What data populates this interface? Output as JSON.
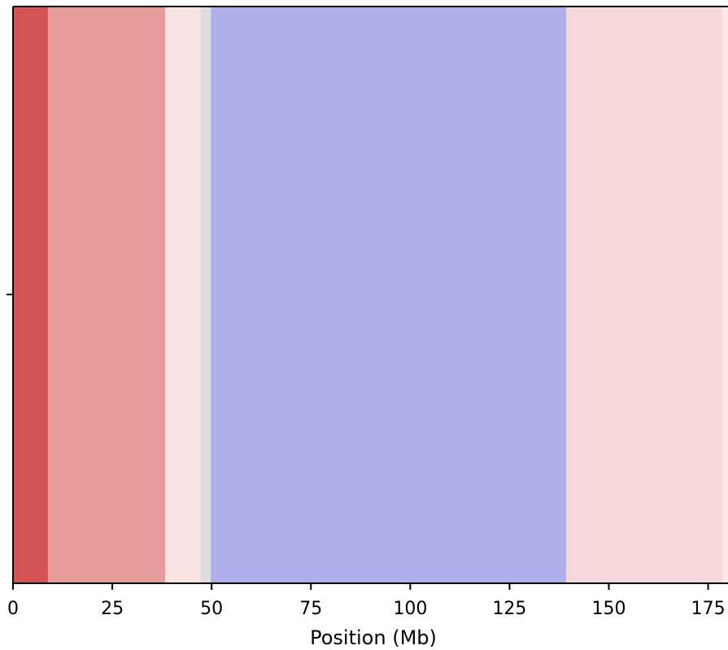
{
  "chart_data": {
    "type": "heatmap",
    "title": "",
    "xlabel": "Position (Mb)",
    "ylabel": "",
    "xlim": [
      0,
      180
    ],
    "x_ticks": [
      0,
      25,
      50,
      75,
      100,
      125,
      150,
      175
    ],
    "x_tick_labels": [
      "0",
      "25",
      "50",
      "75",
      "100",
      "125",
      "150",
      "175"
    ],
    "grid": false,
    "legend": "none",
    "segments": [
      {
        "start": 0,
        "end": 8.8,
        "color": "#d45354"
      },
      {
        "start": 8.8,
        "end": 38.3,
        "color": "#e89b9b"
      },
      {
        "start": 38.3,
        "end": 47.3,
        "color": "#f8e3e1"
      },
      {
        "start": 47.3,
        "end": 49.8,
        "color": "#dddddd"
      },
      {
        "start": 49.8,
        "end": 139.3,
        "color": "#afb0eb"
      },
      {
        "start": 139.3,
        "end": 178.6,
        "color": "#f6d8da"
      },
      {
        "start": 178.6,
        "end": 180,
        "color": "#fbe9e9"
      }
    ]
  }
}
